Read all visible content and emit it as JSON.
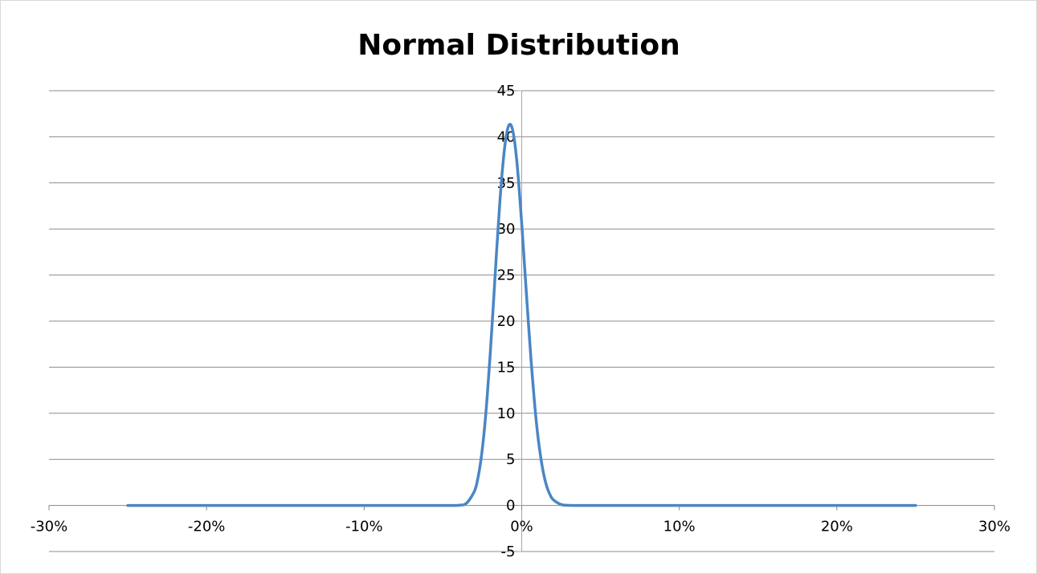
{
  "chart_data": {
    "type": "line",
    "title": "Normal Distribution",
    "xlabel": "",
    "ylabel": "",
    "xlim": [
      -0.3,
      0.3
    ],
    "ylim": [
      -5,
      45
    ],
    "x_ticks": [
      -0.3,
      -0.2,
      -0.1,
      0.0,
      0.1,
      0.2,
      0.3
    ],
    "x_tick_labels": [
      "-30%",
      "-20%",
      "-10%",
      "0%",
      "10%",
      "20%",
      "30%"
    ],
    "y_ticks": [
      -5,
      0,
      5,
      10,
      15,
      20,
      25,
      30,
      35,
      40,
      45
    ],
    "y_tick_labels": [
      "-5",
      "0",
      "5",
      "10",
      "15",
      "20",
      "25",
      "30",
      "35",
      "40",
      "45"
    ],
    "grid": "horizontal",
    "legend": "none",
    "series": [
      {
        "color": "#4a86c4",
        "x": [
          -0.25,
          -0.1,
          -0.05,
          -0.04,
          -0.035,
          -0.03,
          -0.028,
          -0.026,
          -0.024,
          -0.022,
          -0.02,
          -0.018,
          -0.016,
          -0.014,
          -0.012,
          -0.01,
          -0.008,
          -0.006,
          -0.004,
          -0.002,
          0.0,
          0.002,
          0.004,
          0.006,
          0.008,
          0.01,
          0.012,
          0.014,
          0.016,
          0.018,
          0.02,
          0.025,
          0.03,
          0.04,
          0.05,
          0.1,
          0.25
        ],
        "y": [
          0,
          0,
          0,
          0.02,
          0.25,
          1.55,
          2.8,
          4.8,
          7.7,
          11.6,
          16.4,
          21.8,
          27.4,
          32.6,
          36.9,
          39.9,
          41.3,
          40.9,
          38.8,
          35.2,
          30.6,
          25.5,
          20.4,
          15.6,
          11.4,
          7.9,
          5.3,
          3.35,
          2.0,
          1.15,
          0.62,
          0.1,
          0.01,
          0,
          0,
          0,
          0
        ]
      }
    ]
  }
}
